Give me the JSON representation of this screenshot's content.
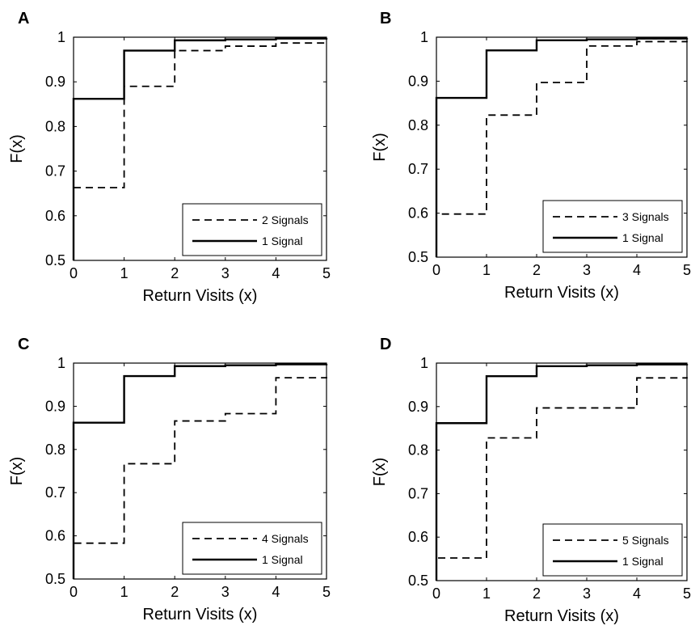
{
  "chart_data": [
    {
      "panel": "A",
      "type": "line",
      "step": true,
      "xlabel": "Return Visits (x)",
      "ylabel": "F(x)",
      "xlim": [
        0,
        5
      ],
      "ylim": [
        0.5,
        1
      ],
      "xticks": [
        "0",
        "1",
        "2",
        "3",
        "4",
        "5"
      ],
      "yticks": [
        "0.5",
        "0.6",
        "0.7",
        "0.8",
        "0.9",
        "1"
      ],
      "grid": false,
      "legend_position": "bottom-right",
      "series": [
        {
          "name": "2 Signals",
          "style": "dashed",
          "x": [
            0,
            1,
            2,
            3,
            4,
            5
          ],
          "y": [
            0.663,
            0.89,
            0.97,
            0.98,
            0.987,
            0.99
          ]
        },
        {
          "name": "1 Signal",
          "style": "solid",
          "x": [
            0,
            1,
            2,
            3,
            4,
            5
          ],
          "y": [
            0.862,
            0.97,
            0.993,
            0.995,
            0.997,
            0.998
          ]
        }
      ]
    },
    {
      "panel": "B",
      "type": "line",
      "step": true,
      "xlabel": "Return Visits (x)",
      "ylabel": "F(x)",
      "xlim": [
        0,
        5
      ],
      "ylim": [
        0.5,
        1
      ],
      "xticks": [
        "0",
        "1",
        "2",
        "3",
        "4",
        "5"
      ],
      "yticks": [
        "0.5",
        "0.6",
        "0.7",
        "0.8",
        "0.9",
        "1"
      ],
      "grid": false,
      "legend_position": "bottom-right",
      "series": [
        {
          "name": "3 Signals",
          "style": "dashed",
          "x": [
            0,
            1,
            2,
            3,
            4,
            5
          ],
          "y": [
            0.598,
            0.823,
            0.897,
            0.98,
            0.99,
            0.992
          ]
        },
        {
          "name": "1 Signal",
          "style": "solid",
          "x": [
            0,
            1,
            2,
            3,
            4,
            5
          ],
          "y": [
            0.862,
            0.97,
            0.993,
            0.995,
            0.997,
            0.998
          ]
        }
      ]
    },
    {
      "panel": "C",
      "type": "line",
      "step": true,
      "xlabel": "Return Visits (x)",
      "ylabel": "F(x)",
      "xlim": [
        0,
        5
      ],
      "ylim": [
        0.5,
        1
      ],
      "xticks": [
        "0",
        "1",
        "2",
        "3",
        "4",
        "5"
      ],
      "yticks": [
        "0.5",
        "0.6",
        "0.7",
        "0.8",
        "0.9",
        "1"
      ],
      "grid": false,
      "legend_position": "bottom-right",
      "series": [
        {
          "name": "4 Signals",
          "style": "dashed",
          "x": [
            0,
            1,
            2,
            3,
            4,
            5
          ],
          "y": [
            0.583,
            0.767,
            0.866,
            0.883,
            0.966,
            0.968
          ]
        },
        {
          "name": "1 Signal",
          "style": "solid",
          "x": [
            0,
            1,
            2,
            3,
            4,
            5
          ],
          "y": [
            0.862,
            0.97,
            0.993,
            0.995,
            0.997,
            0.998
          ]
        }
      ]
    },
    {
      "panel": "D",
      "type": "line",
      "step": true,
      "xlabel": "Return Visits (x)",
      "ylabel": "F(x)",
      "xlim": [
        0,
        5
      ],
      "ylim": [
        0.5,
        1
      ],
      "xticks": [
        "0",
        "1",
        "2",
        "3",
        "4",
        "5"
      ],
      "yticks": [
        "0.5",
        "0.6",
        "0.7",
        "0.8",
        "0.9",
        "1"
      ],
      "grid": false,
      "legend_position": "bottom-right",
      "series": [
        {
          "name": "5 Signals",
          "style": "dashed",
          "x": [
            0,
            1,
            2,
            3,
            4,
            5
          ],
          "y": [
            0.552,
            0.828,
            0.897,
            0.897,
            0.966,
            0.968
          ]
        },
        {
          "name": "1 Signal",
          "style": "solid",
          "x": [
            0,
            1,
            2,
            3,
            4,
            5
          ],
          "y": [
            0.862,
            0.97,
            0.993,
            0.995,
            0.997,
            0.998
          ]
        }
      ]
    }
  ]
}
